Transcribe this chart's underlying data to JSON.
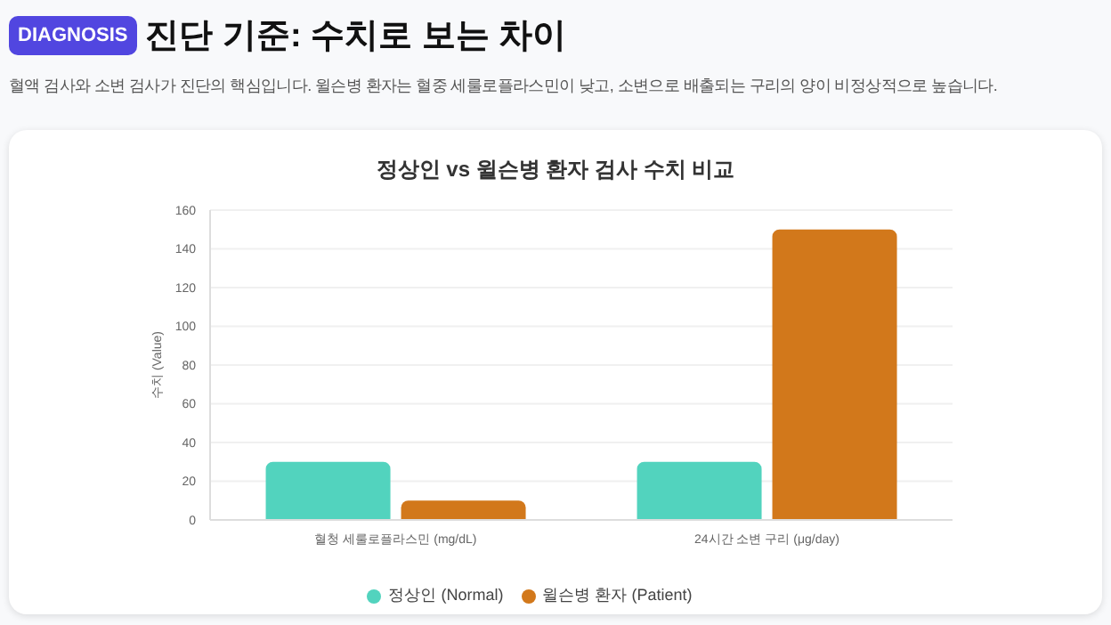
{
  "chart_data": {
    "type": "bar",
    "title": "정상인 vs 윌슨병 환자 검사 수치 비교",
    "subtitle": "혈액 검사와 소변 검사가 진단의 핵심입니다. 윌슨병 환자는 혈중 세룰로플라스민이 낮고, 소변으로 배출되는 구리의 양이 비정상적으로 높습니다.",
    "annotations": [
      "DIAGNOSIS",
      "진단 기준: 수치로 보는 차이"
    ],
    "ylabel": "수치 (Value)",
    "categories": [
      "혈청 세룰로플라스민 (mg/dL)",
      "24시간 소변 구리 (μg/day)"
    ],
    "series": [
      {
        "name": "정상인 (Normal)",
        "color": "#52d3be",
        "values": [
          30,
          30
        ]
      },
      {
        "name": "윌슨병 환자 (Patient)",
        "color": "#d2781b",
        "values": [
          10,
          150
        ]
      }
    ],
    "ylim": [
      0,
      160
    ],
    "yticks": [
      0,
      20,
      40,
      60,
      80,
      100,
      120,
      140,
      160
    ],
    "grid": "y",
    "legend": "bottom"
  }
}
